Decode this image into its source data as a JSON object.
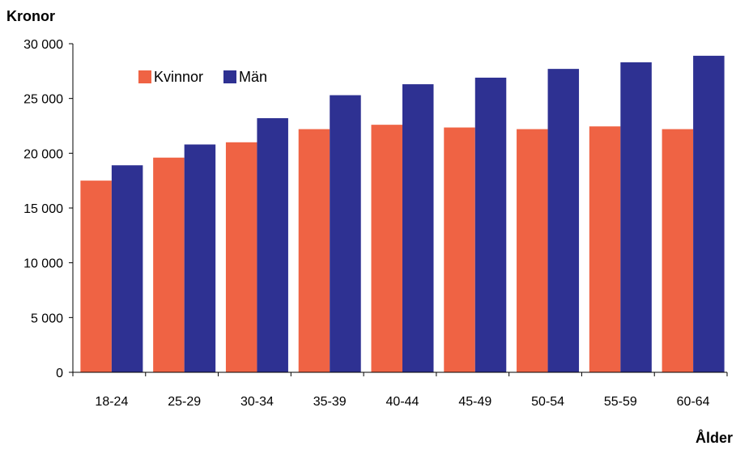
{
  "chart_data": {
    "type": "bar",
    "title": "",
    "ylabel": "Kronor",
    "xlabel": "Ålder",
    "categories": [
      "18-24",
      "25-29",
      "30-34",
      "35-39",
      "40-44",
      "45-49",
      "50-54",
      "55-59",
      "60-64"
    ],
    "series": [
      {
        "name": "Kvinnor",
        "color": "#EF6344",
        "values": [
          17500,
          19600,
          21000,
          22200,
          22600,
          22350,
          22200,
          22450,
          22200
        ]
      },
      {
        "name": "Män",
        "color": "#2E3192",
        "values": [
          18900,
          20800,
          23200,
          25300,
          26300,
          26900,
          27700,
          28300,
          28900
        ]
      }
    ],
    "ylim": [
      0,
      30000
    ],
    "yticks": [
      0,
      5000,
      10000,
      15000,
      20000,
      25000,
      30000
    ],
    "ytick_labels": [
      "0",
      "5 000",
      "10 000",
      "15 000",
      "20 000",
      "25 000",
      "30 000"
    ],
    "grid": false,
    "legend_position": "top-left"
  }
}
